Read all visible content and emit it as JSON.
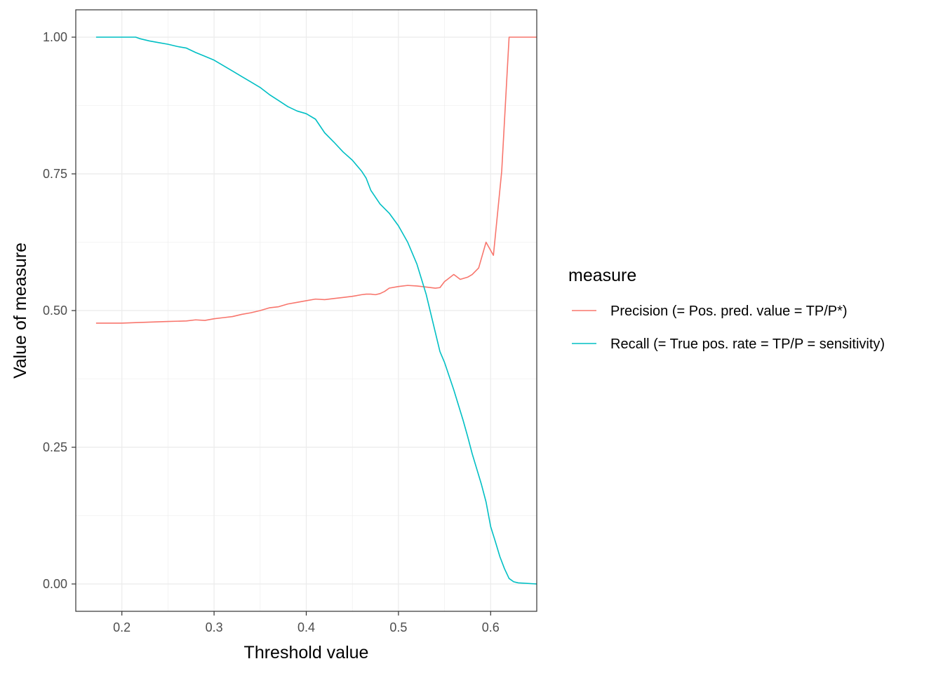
{
  "chart_data": {
    "type": "line",
    "title": "",
    "xlabel": "Threshold value",
    "ylabel": "Value of measure",
    "xlim": [
      0.15,
      0.65
    ],
    "ylim": [
      -0.05,
      1.05
    ],
    "x_ticks": [
      0.2,
      0.3,
      0.4,
      0.5,
      0.6
    ],
    "x_tick_labels": [
      "0.2",
      "0.3",
      "0.4",
      "0.5",
      "0.6"
    ],
    "y_ticks": [
      0.0,
      0.25,
      0.5,
      0.75,
      1.0
    ],
    "y_tick_labels": [
      "0.00",
      "0.25",
      "0.50",
      "0.75",
      "1.00"
    ],
    "grid": true,
    "legend": {
      "title": "measure",
      "position": "right"
    },
    "series": [
      {
        "name": "Precision (= Pos. pred. value = TP/P*)",
        "color": "#F8766D",
        "x": [
          0.172,
          0.2,
          0.215,
          0.25,
          0.27,
          0.28,
          0.29,
          0.3,
          0.31,
          0.32,
          0.33,
          0.34,
          0.35,
          0.36,
          0.37,
          0.38,
          0.39,
          0.4,
          0.41,
          0.42,
          0.43,
          0.44,
          0.45,
          0.46,
          0.465,
          0.47,
          0.475,
          0.48,
          0.485,
          0.49,
          0.5,
          0.51,
          0.52,
          0.53,
          0.54,
          0.545,
          0.55,
          0.56,
          0.567,
          0.575,
          0.58,
          0.587,
          0.595,
          0.603,
          0.612,
          0.62,
          0.65
        ],
        "values": [
          0.477,
          0.477,
          0.478,
          0.48,
          0.481,
          0.483,
          0.482,
          0.485,
          0.487,
          0.489,
          0.493,
          0.496,
          0.5,
          0.505,
          0.507,
          0.512,
          0.515,
          0.518,
          0.521,
          0.52,
          0.522,
          0.524,
          0.526,
          0.529,
          0.53,
          0.53,
          0.529,
          0.531,
          0.535,
          0.541,
          0.544,
          0.546,
          0.545,
          0.543,
          0.541,
          0.542,
          0.553,
          0.566,
          0.557,
          0.561,
          0.566,
          0.578,
          0.625,
          0.601,
          0.755,
          1.0,
          1.0
        ]
      },
      {
        "name": "Recall (= True pos. rate = TP/P = sensitivity)",
        "color": "#00BFC4",
        "x": [
          0.172,
          0.19,
          0.2,
          0.215,
          0.22,
          0.23,
          0.24,
          0.25,
          0.26,
          0.27,
          0.28,
          0.29,
          0.3,
          0.31,
          0.32,
          0.33,
          0.34,
          0.35,
          0.36,
          0.37,
          0.38,
          0.39,
          0.4,
          0.41,
          0.42,
          0.43,
          0.44,
          0.45,
          0.46,
          0.465,
          0.47,
          0.48,
          0.49,
          0.5,
          0.51,
          0.515,
          0.52,
          0.53,
          0.54,
          0.545,
          0.55,
          0.56,
          0.57,
          0.575,
          0.58,
          0.585,
          0.59,
          0.595,
          0.6,
          0.605,
          0.61,
          0.615,
          0.62,
          0.625,
          0.63,
          0.65
        ],
        "values": [
          1.0,
          1.0,
          1.0,
          1.0,
          0.997,
          0.993,
          0.99,
          0.987,
          0.983,
          0.98,
          0.972,
          0.965,
          0.958,
          0.948,
          0.938,
          0.928,
          0.918,
          0.908,
          0.895,
          0.884,
          0.873,
          0.865,
          0.86,
          0.85,
          0.825,
          0.808,
          0.79,
          0.775,
          0.755,
          0.742,
          0.72,
          0.695,
          0.678,
          0.655,
          0.625,
          0.605,
          0.585,
          0.53,
          0.46,
          0.425,
          0.405,
          0.355,
          0.3,
          0.27,
          0.238,
          0.21,
          0.182,
          0.15,
          0.105,
          0.078,
          0.05,
          0.028,
          0.01,
          0.004,
          0.002,
          0.0
        ]
      }
    ]
  }
}
